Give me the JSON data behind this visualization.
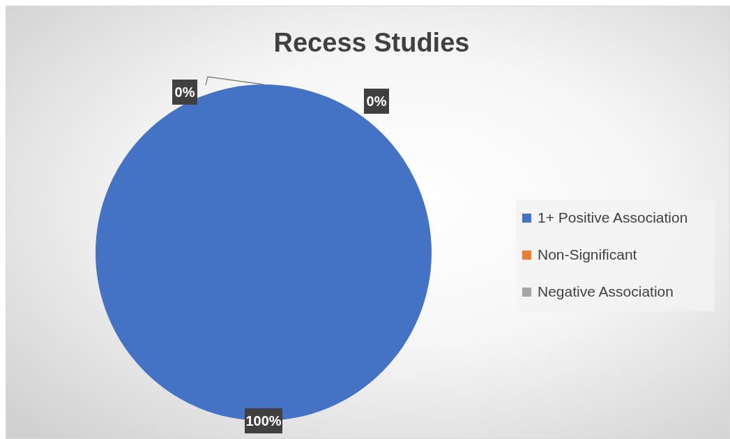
{
  "chart_data": {
    "type": "pie",
    "title": "Recess Studies",
    "categories": [
      "1+ Positive Association",
      "Non-Significant",
      "Negative Association"
    ],
    "values": [
      100,
      0,
      0
    ],
    "colors": [
      "#4472c4",
      "#ed7d31",
      "#a5a5a5"
    ],
    "value_labels": [
      "100%",
      "0%",
      "0%"
    ],
    "legend": "right"
  }
}
